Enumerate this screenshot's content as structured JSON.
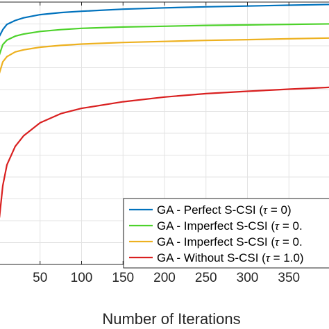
{
  "chart_data": {
    "type": "line",
    "title": "",
    "xlabel": "Number of Iterations",
    "ylabel": "",
    "xlim": [
      0,
      400
    ],
    "ylim": [
      0,
      1
    ],
    "xticks": [
      50,
      100,
      150,
      200,
      250,
      300,
      350
    ],
    "xtick_labels": [
      "50",
      "100",
      "150",
      "200",
      "250",
      "300",
      "350"
    ],
    "grid": true,
    "legend_position": "bottom-right",
    "series": [
      {
        "name": "GA - Perfect S-CSI (",
        "tau_value": "0)",
        "color": "#0072BD",
        "x": [
          1,
          5,
          10,
          20,
          30,
          50,
          75,
          100,
          150,
          200,
          250,
          300,
          350,
          400
        ],
        "y": [
          0.87,
          0.895,
          0.915,
          0.93,
          0.94,
          0.952,
          0.96,
          0.965,
          0.973,
          0.978,
          0.982,
          0.985,
          0.988,
          0.991
        ]
      },
      {
        "name": "GA - Imperfect S-CSI (",
        "tau_value": "0.",
        "color": "#4DD22B",
        "x": [
          1,
          5,
          10,
          20,
          30,
          50,
          75,
          100,
          150,
          200,
          250,
          300,
          350,
          400
        ],
        "y": [
          0.8,
          0.838,
          0.855,
          0.87,
          0.878,
          0.888,
          0.895,
          0.9,
          0.905,
          0.908,
          0.911,
          0.913,
          0.915,
          0.917
        ]
      },
      {
        "name": "GA - Imperfect S-CSI (",
        "tau_value": "0.",
        "color": "#EDB120",
        "x": [
          1,
          5,
          10,
          20,
          30,
          50,
          75,
          100,
          150,
          200,
          250,
          300,
          350,
          400
        ],
        "y": [
          0.73,
          0.772,
          0.792,
          0.81,
          0.818,
          0.828,
          0.835,
          0.84,
          0.846,
          0.85,
          0.854,
          0.857,
          0.86,
          0.863
        ]
      },
      {
        "name": "GA - Without S-CSI (",
        "tau_value": "1.0)",
        "color": "#D92020",
        "x": [
          1,
          5,
          10,
          20,
          30,
          50,
          75,
          100,
          150,
          200,
          250,
          300,
          350,
          400
        ],
        "y": [
          0.18,
          0.3,
          0.38,
          0.45,
          0.49,
          0.54,
          0.575,
          0.595,
          0.62,
          0.638,
          0.651,
          0.66,
          0.668,
          0.675
        ]
      }
    ]
  }
}
